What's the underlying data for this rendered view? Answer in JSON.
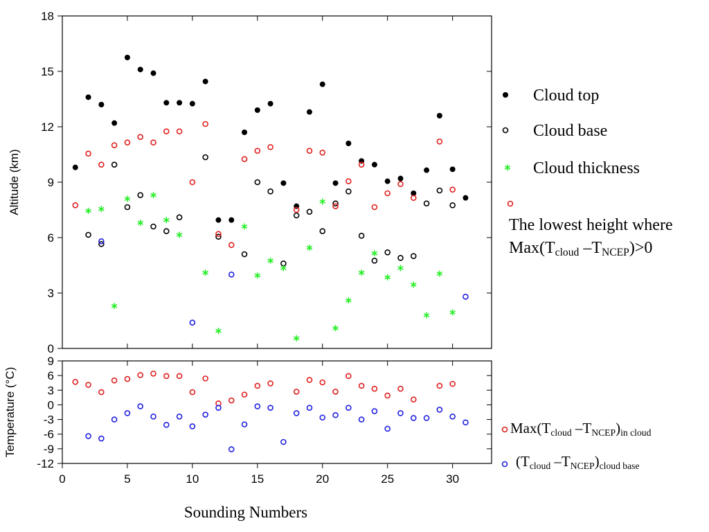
{
  "chart_data": [
    {
      "type": "scatter",
      "ylabel": "Altitude (km)",
      "x": [
        1,
        2,
        3,
        4,
        5,
        6,
        7,
        8,
        9,
        10,
        11,
        12,
        13,
        14,
        15,
        16,
        17,
        18,
        19,
        20,
        21,
        22,
        23,
        24,
        25,
        26,
        27,
        28,
        29,
        30,
        31
      ],
      "xlim": [
        0,
        33
      ],
      "xticks": [
        0,
        5,
        10,
        15,
        20,
        25,
        30
      ],
      "ylim": [
        0,
        18
      ],
      "yticks": [
        0,
        3,
        6,
        9,
        12,
        15,
        18
      ],
      "series": [
        {
          "name": "Cloud top",
          "color": "#000000",
          "marker": "filled-circle",
          "values": [
            9.8,
            13.6,
            13.2,
            12.2,
            15.75,
            15.1,
            14.9,
            13.3,
            13.3,
            13.25,
            14.45,
            6.95,
            6.95,
            11.7,
            12.9,
            13.25,
            8.95,
            7.7,
            12.8,
            14.3,
            8.95,
            11.1,
            10.15,
            9.95,
            9.05,
            9.2,
            8.4,
            9.65,
            12.6,
            9.7,
            8.15
          ]
        },
        {
          "name": "Cloud base",
          "color": "#000000",
          "marker": "open-circle",
          "values": [
            null,
            6.15,
            5.65,
            9.95,
            7.65,
            8.3,
            6.6,
            6.35,
            7.1,
            null,
            10.35,
            6.05,
            null,
            5.1,
            9.0,
            8.5,
            4.6,
            7.2,
            7.4,
            6.35,
            7.85,
            8.5,
            6.1,
            4.75,
            5.2,
            4.9,
            5.0,
            7.85,
            8.55,
            7.75,
            null
          ]
        },
        {
          "name": "Cloud thickness",
          "color": "#22ee22",
          "marker": "asterisk",
          "values": [
            null,
            7.45,
            7.55,
            2.3,
            8.1,
            6.8,
            8.3,
            6.95,
            6.15,
            null,
            4.1,
            0.95,
            null,
            6.6,
            3.95,
            4.75,
            4.35,
            0.55,
            5.45,
            7.95,
            1.1,
            2.6,
            4.1,
            5.15,
            3.85,
            4.35,
            3.45,
            1.8,
            4.05,
            1.95,
            null
          ]
        },
        {
          "name": [
            [
              {
                "text": "The lowest height where"
              }
            ],
            [
              {
                "text": "Max(T"
              },
              {
                "text": "cloud",
                "sub": true
              },
              {
                "text": " –T"
              },
              {
                "text": "NCEP",
                "sub": true
              },
              {
                "text": ")>0"
              }
            ]
          ],
          "color": "#e02020",
          "marker": "open-circle",
          "values": [
            7.75,
            10.55,
            9.95,
            11.0,
            11.15,
            11.45,
            11.15,
            11.75,
            11.75,
            9.0,
            12.15,
            6.2,
            5.6,
            10.25,
            10.7,
            10.9,
            null,
            7.5,
            10.7,
            10.6,
            7.7,
            9.05,
            9.95,
            7.65,
            8.4,
            8.9,
            8.15,
            null,
            11.2,
            8.6,
            null
          ]
        },
        {
          "color": "#2020e0",
          "marker": "open-circle",
          "values": [
            null,
            null,
            5.8,
            null,
            null,
            null,
            null,
            null,
            null,
            1.4,
            null,
            null,
            4.0,
            null,
            null,
            null,
            null,
            null,
            null,
            null,
            null,
            null,
            null,
            null,
            null,
            null,
            null,
            null,
            null,
            null,
            2.8
          ]
        }
      ]
    },
    {
      "type": "scatter",
      "ylabel": "Temperature (°C)",
      "xlabel": "Sounding Numbers",
      "x": [
        1,
        2,
        3,
        4,
        5,
        6,
        7,
        8,
        9,
        10,
        11,
        12,
        13,
        14,
        15,
        16,
        17,
        18,
        19,
        20,
        21,
        22,
        23,
        24,
        25,
        26,
        27,
        28,
        29,
        30,
        31
      ],
      "xlim": [
        0,
        33
      ],
      "xticks": [
        0,
        5,
        10,
        15,
        20,
        25,
        30
      ],
      "ylim": [
        -12,
        9
      ],
      "yticks": [
        9,
        6,
        3,
        0,
        -3,
        -6,
        -9,
        -12
      ],
      "series": [
        {
          "name": [
            [
              {
                "text": "Max(T"
              },
              {
                "text": "cloud",
                "sub": true
              },
              {
                "text": " –T"
              },
              {
                "text": "NCEP",
                "sub": true
              },
              {
                "text": ")"
              },
              {
                "text": "in cloud",
                "sub": true
              }
            ]
          ],
          "color": "#e02020",
          "marker": "open-circle",
          "values": [
            4.7,
            4.1,
            2.6,
            5.0,
            5.3,
            6.1,
            6.4,
            5.9,
            5.9,
            2.6,
            5.4,
            0.3,
            0.9,
            2.1,
            3.9,
            4.4,
            null,
            2.7,
            5.1,
            4.6,
            2.7,
            5.9,
            3.9,
            3.3,
            1.9,
            3.3,
            1.1,
            null,
            3.9,
            4.3,
            null
          ]
        },
        {
          "name": [
            [
              {
                "text": "(T"
              },
              {
                "text": "cloud",
                "sub": true
              },
              {
                "text": " –T"
              },
              {
                "text": "NCEP",
                "sub": true
              },
              {
                "text": ")"
              },
              {
                "text": "cloud base",
                "sub": true
              }
            ]
          ],
          "color": "#2020e0",
          "marker": "open-circle",
          "values": [
            null,
            -6.4,
            -6.9,
            -3.0,
            -1.7,
            -0.3,
            -2.4,
            -4.1,
            -2.4,
            -4.4,
            -2.0,
            -0.6,
            -9.1,
            -4.0,
            -0.3,
            -0.6,
            -7.6,
            -1.7,
            -0.6,
            -2.6,
            -2.1,
            -0.6,
            -3.0,
            -1.3,
            -4.9,
            -1.7,
            -2.7,
            -2.7,
            -1.0,
            -2.4,
            -3.6
          ]
        }
      ]
    }
  ]
}
